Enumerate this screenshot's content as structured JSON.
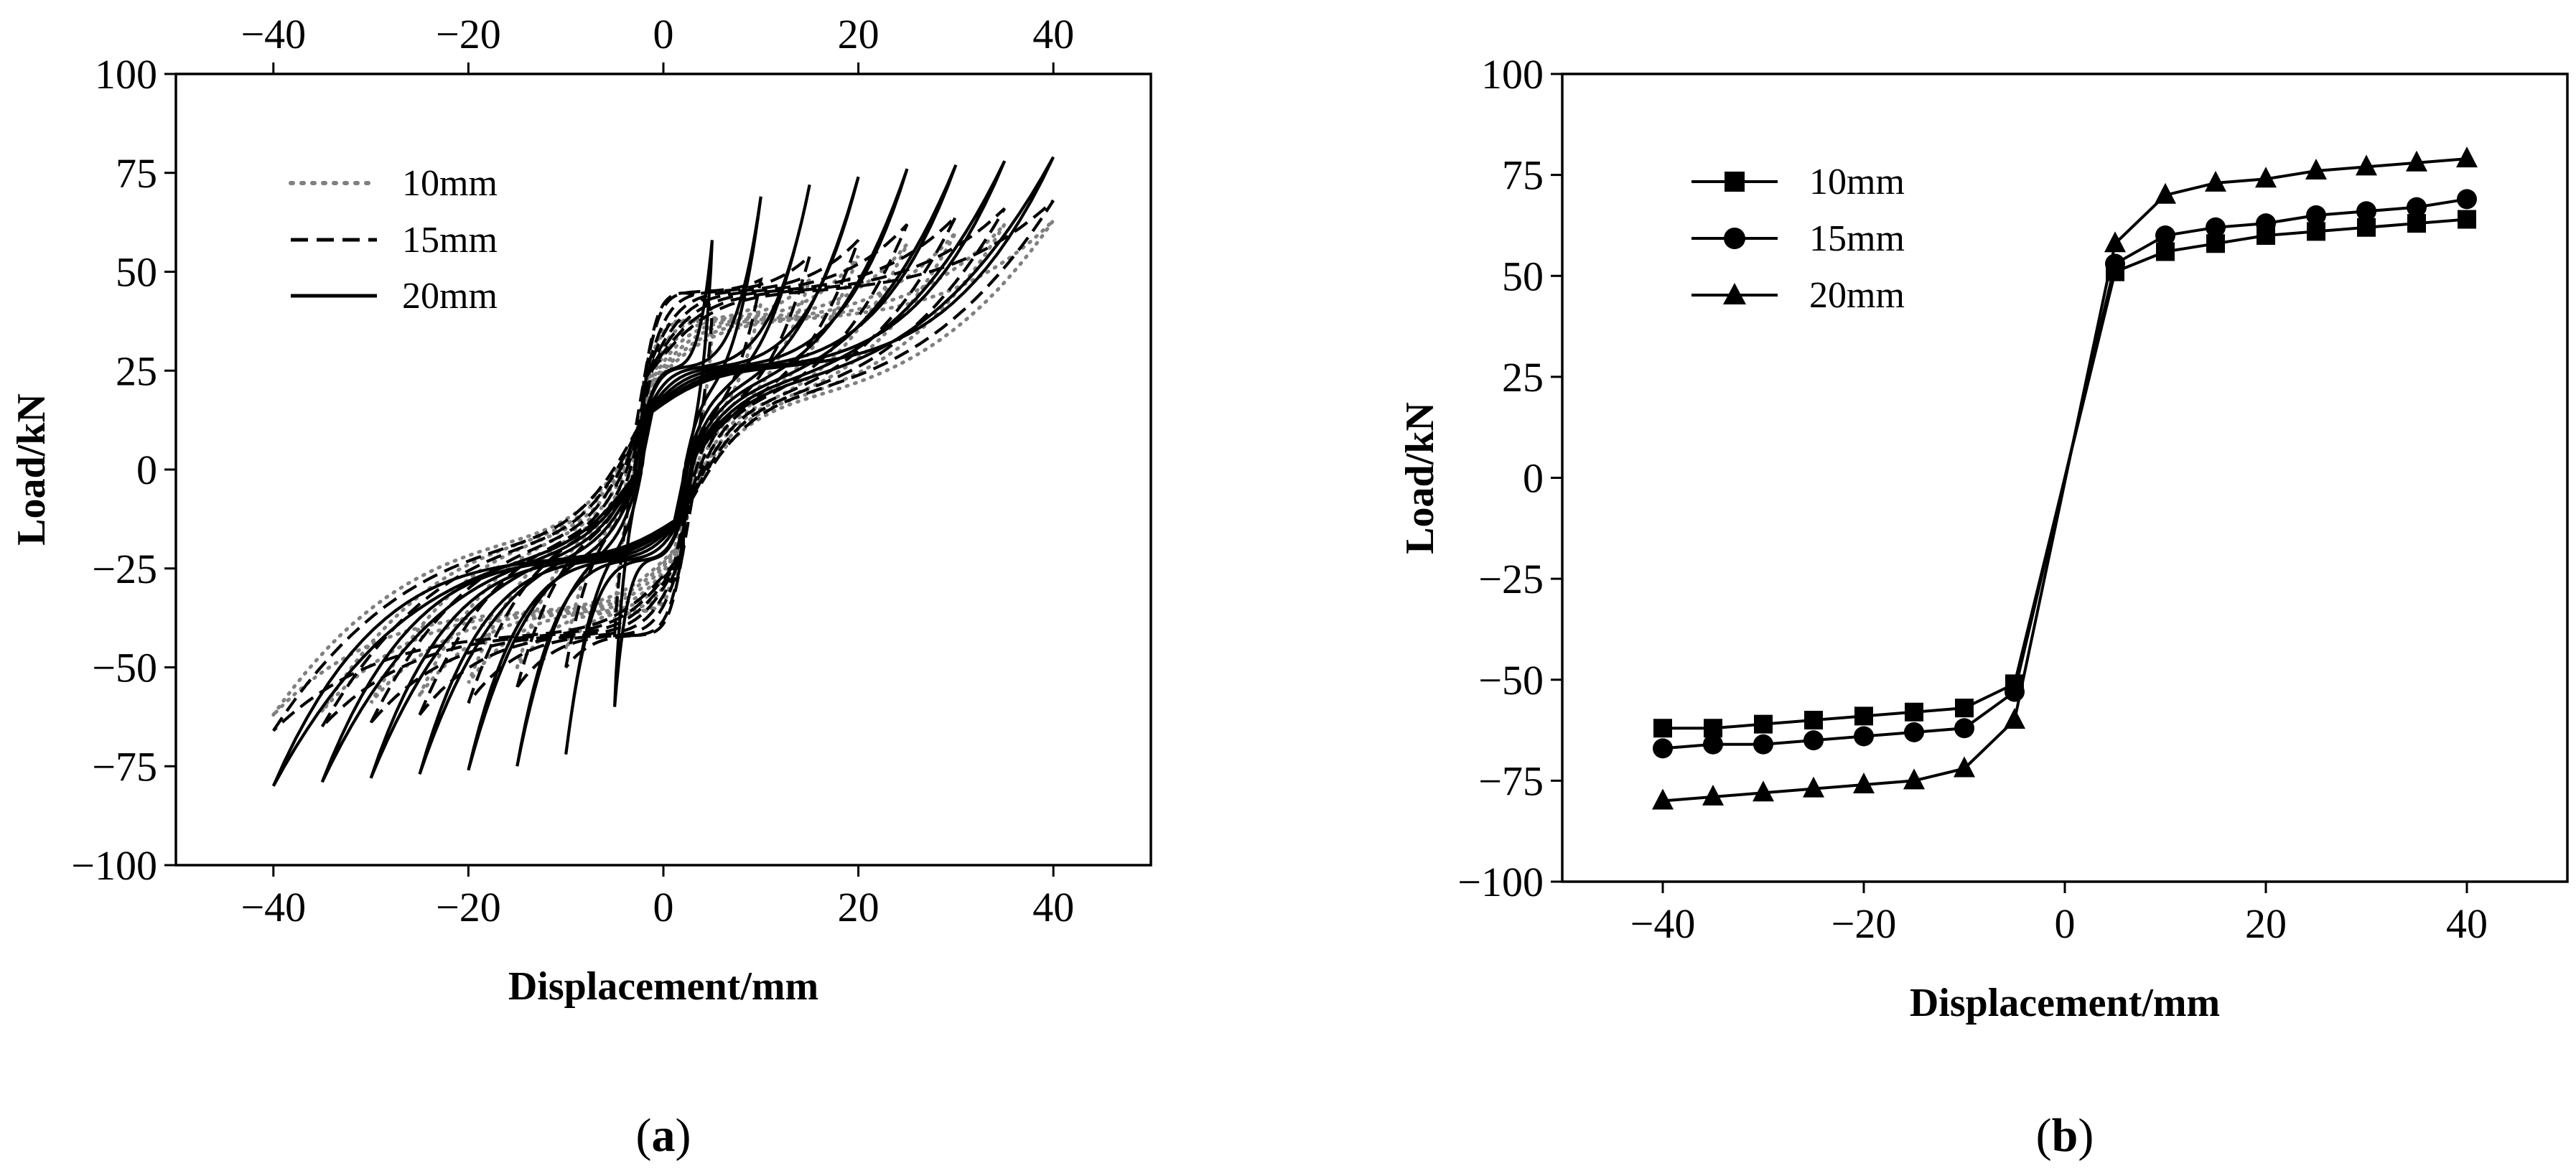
{
  "figure": {
    "panel_a_label_open": "(",
    "panel_a_label_letter": "a",
    "panel_a_label_close": ")",
    "panel_b_label_open": "(",
    "panel_b_label_letter": "b",
    "panel_b_label_close": ")"
  },
  "colors": {
    "dotted_series": "#808080",
    "line": "#000000"
  },
  "chart_data": [
    {
      "id": "a",
      "type": "line",
      "title": "",
      "xlabel": "Displacement/mm",
      "ylabel": "Load/kN",
      "xlim": [
        -50,
        50
      ],
      "ylim": [
        -100,
        100
      ],
      "xticks": [
        -40,
        -20,
        0,
        20,
        40
      ],
      "xtick_labels": [
        "−40",
        "−20",
        "0",
        "20",
        "40"
      ],
      "top_xticks": [
        -40,
        -20,
        0,
        20,
        40
      ],
      "top_xtick_labels": [
        "−40",
        "−20",
        "0",
        "20",
        "40"
      ],
      "yticks": [
        100,
        75,
        50,
        25,
        0,
        -25,
        -50,
        -75,
        -100
      ],
      "ytick_labels": [
        "100",
        "75",
        "50",
        "25",
        "0",
        "−25",
        "−50",
        "−75",
        "−100"
      ],
      "grid": false,
      "legend_position": "top-left",
      "loop_amplitudes_mm": [
        5,
        10,
        15,
        20,
        25,
        30,
        35,
        40
      ],
      "series": [
        {
          "name": "10mm",
          "style": "dotted",
          "peak_load_pos": [
            35,
            42,
            48,
            54,
            57,
            60,
            62,
            63
          ],
          "peak_load_neg": [
            -38,
            -45,
            -50,
            -54,
            -57,
            -59,
            -61,
            -62
          ],
          "low_plateau_pos": 38,
          "low_plateau_neg": -36
        },
        {
          "name": "15mm",
          "style": "dashed",
          "peak_load_pos": [
            40,
            48,
            54,
            58,
            62,
            64,
            66,
            68
          ],
          "peak_load_neg": [
            -42,
            -50,
            -55,
            -59,
            -62,
            -64,
            -65,
            -66
          ],
          "low_plateau_pos": 45,
          "low_plateau_neg": -42
        },
        {
          "name": "20mm",
          "style": "solid",
          "peak_load_pos": [
            58,
            69,
            72,
            74,
            76,
            77,
            78,
            79
          ],
          "peak_load_neg": [
            -60,
            -72,
            -75,
            -76,
            -77,
            -78,
            -79,
            -80
          ],
          "low_plateau_pos": 26,
          "low_plateau_neg": -23
        }
      ]
    },
    {
      "id": "b",
      "type": "line",
      "title": "",
      "xlabel": "Displacement/mm",
      "ylabel": "Load/kN",
      "xlim": [
        -50,
        50
      ],
      "ylim": [
        -100,
        100
      ],
      "xticks": [
        -40,
        -20,
        0,
        20,
        40
      ],
      "xtick_labels": [
        "−40",
        "−20",
        "0",
        "20",
        "40"
      ],
      "yticks": [
        100,
        75,
        50,
        25,
        0,
        -25,
        -50,
        -75,
        -100
      ],
      "ytick_labels": [
        "100",
        "75",
        "50",
        "25",
        "0",
        "−25",
        "−50",
        "−75",
        "−100"
      ],
      "grid": false,
      "legend_position": "top-left",
      "x": [
        -40,
        -35,
        -30,
        -25,
        -20,
        -15,
        -10,
        -5,
        5,
        10,
        15,
        20,
        25,
        30,
        35,
        40
      ],
      "series": [
        {
          "name": "10mm",
          "marker": "square",
          "values": [
            -62,
            -62,
            -61,
            -60,
            -59,
            -58,
            -57,
            -51,
            51,
            56,
            58,
            60,
            61,
            62,
            63,
            64
          ]
        },
        {
          "name": "15mm",
          "marker": "circle",
          "values": [
            -67,
            -66,
            -66,
            -65,
            -64,
            -63,
            -62,
            -53,
            53,
            60,
            62,
            63,
            65,
            66,
            67,
            69
          ]
        },
        {
          "name": "20mm",
          "marker": "triangle",
          "values": [
            -80,
            -79,
            -78,
            -77,
            -76,
            -75,
            -72,
            -60,
            58,
            70,
            73,
            74,
            76,
            77,
            78,
            79
          ]
        }
      ]
    }
  ]
}
